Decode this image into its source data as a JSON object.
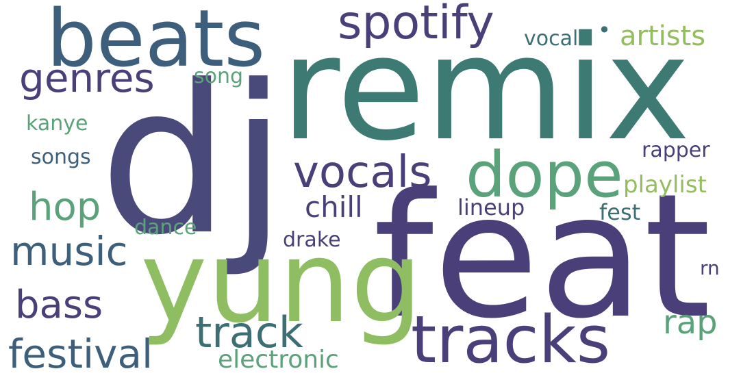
{
  "words": {
    "dj": {
      "text": "dj",
      "color": "#4a4a7a"
    },
    "feat": {
      "text": "feat",
      "color": "#4a3f78"
    },
    "remix": {
      "text": "remix",
      "color": "#3e7a74"
    },
    "yung": {
      "text": "yung",
      "color": "#8fbe62"
    },
    "beats": {
      "text": "beats",
      "color": "#3d5f7c"
    },
    "tracks": {
      "text": "tracks",
      "color": "#4a3f78"
    },
    "dope": {
      "text": "dope",
      "color": "#5aa27a"
    },
    "spotify": {
      "text": "spotify",
      "color": "#4a3f78"
    },
    "vocals": {
      "text": "vocals",
      "color": "#4a3f78"
    },
    "genres": {
      "text": "genres",
      "color": "#4a3f78"
    },
    "track": {
      "text": "track",
      "color": "#3c6f73"
    },
    "festival": {
      "text": "festival",
      "color": "#3d5f7c"
    },
    "music": {
      "text": "music",
      "color": "#3d5f7c"
    },
    "hop": {
      "text": "hop",
      "color": "#5aa27a"
    },
    "bass": {
      "text": "bass",
      "color": "#4a3f78"
    },
    "rap": {
      "text": "rap",
      "color": "#5aa27a"
    },
    "artists": {
      "text": "artists",
      "color": "#93bd5f"
    },
    "chill": {
      "text": "chill",
      "color": "#4a3f78"
    },
    "electronic": {
      "text": "electronic",
      "color": "#5aa27a"
    },
    "playlist": {
      "text": "playlist",
      "color": "#93bd5f"
    },
    "fest": {
      "text": "fest",
      "color": "#3c6f73"
    },
    "lineup": {
      "text": "lineup",
      "color": "#4a3f78"
    },
    "rapper": {
      "text": "rapper",
      "color": "#4a3f78"
    },
    "songs": {
      "text": "songs",
      "color": "#3d5f7c"
    },
    "drake": {
      "text": "drake",
      "color": "#4a3f78"
    },
    "kanye": {
      "text": "kanye",
      "color": "#5aa27a"
    },
    "dance": {
      "text": "dance",
      "color": "#5aa27a"
    },
    "vocal": {
      "text": "vocal",
      "color": "#3c6f73"
    },
    "song": {
      "text": "song",
      "color": "#5aa27a"
    },
    "rn": {
      "text": "rn",
      "color": "#4a3f78"
    },
    "dot": {
      "text": "•",
      "color": "#3c6f73"
    }
  }
}
